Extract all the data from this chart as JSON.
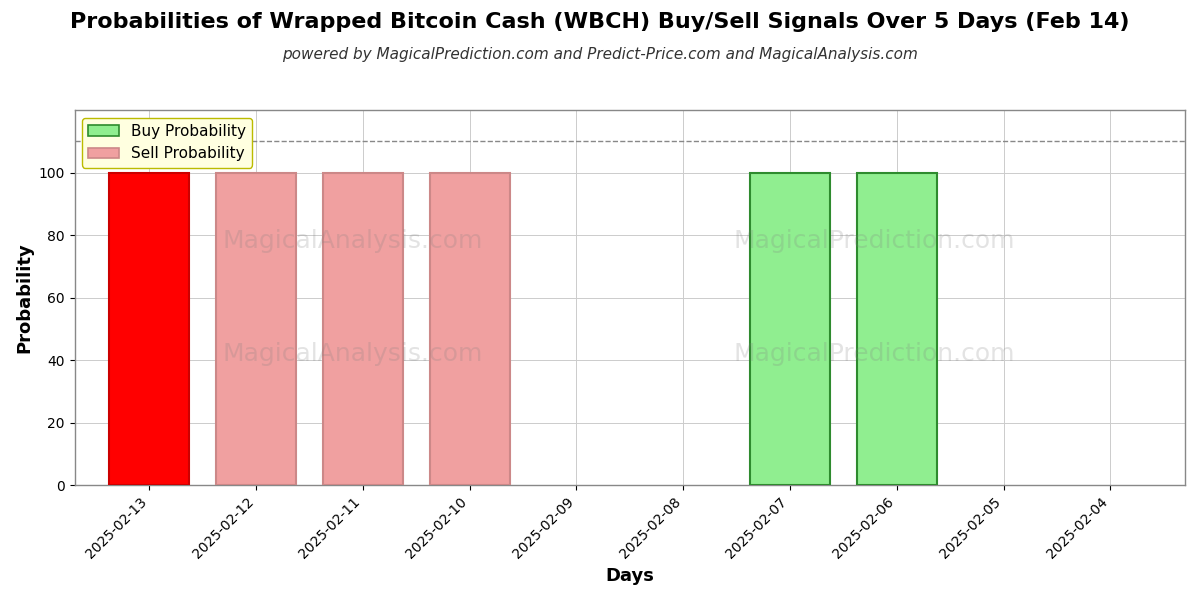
{
  "title": "Probabilities of Wrapped Bitcoin Cash (WBCH) Buy/Sell Signals Over 5 Days (Feb 14)",
  "subtitle": "powered by MagicalPrediction.com and Predict-Price.com and MagicalAnalysis.com",
  "xlabel": "Days",
  "ylabel": "Probability",
  "watermark1": "MagicalAnalysis.com",
  "watermark2": "MagicalPrediction.com",
  "dates": [
    "2025-02-13",
    "2025-02-12",
    "2025-02-11",
    "2025-02-10",
    "2025-02-09",
    "2025-02-08",
    "2025-02-07",
    "2025-02-06",
    "2025-02-05",
    "2025-02-04"
  ],
  "buy_probs": [
    0,
    0,
    0,
    0,
    0,
    0,
    100,
    100,
    0,
    0
  ],
  "sell_probs": [
    100,
    100,
    100,
    100,
    0,
    0,
    0,
    0,
    0,
    0
  ],
  "sell_strong_indices": [
    0
  ],
  "buy_color": "#90EE90",
  "buy_edge_color": "#2E8B2E",
  "sell_color_strong": "#FF0000",
  "sell_color_weak": "#F0A0A0",
  "sell_edge_weak": "#CC8888",
  "sell_edge_strong": "#CC0000",
  "ylim": [
    0,
    120
  ],
  "yticks": [
    0,
    20,
    40,
    60,
    80,
    100
  ],
  "background_color": "#FFFFFF",
  "grid_color": "#CCCCCC",
  "title_fontsize": 16,
  "subtitle_fontsize": 11,
  "axis_label_fontsize": 13,
  "tick_fontsize": 10,
  "bar_width": 0.75,
  "legend_bg": "#FFFFE0",
  "legend_border": "#BBBB00",
  "dashed_line_y": 110
}
